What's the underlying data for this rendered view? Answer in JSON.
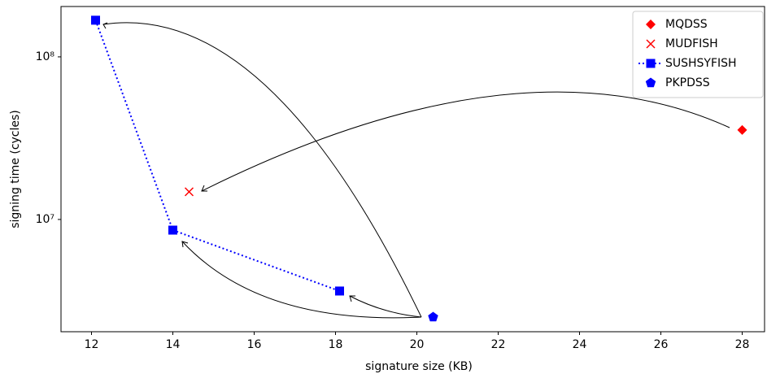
{
  "chart_data": {
    "type": "line",
    "x_label": "signature size (KB)",
    "y_label": "signing time (cycles)",
    "xlim": [
      11.25,
      28.55
    ],
    "xticks": [
      12,
      14,
      16,
      18,
      20,
      22,
      24,
      26,
      28
    ],
    "ylim": [
      2040000,
      204000000
    ],
    "yticks": [
      {
        "value": 10000000,
        "label": "10⁷"
      },
      {
        "value": 100000000,
        "label": "10⁸"
      }
    ],
    "y_scale": "log",
    "legend": "upper right",
    "series": [
      {
        "name": "MQDSS",
        "color": "#ff0000",
        "marker": "diamond",
        "line": false,
        "x": [
          28
        ],
        "values": [
          35500000
        ]
      },
      {
        "name": "MUDFISH",
        "color": "#ff0000",
        "marker": "x",
        "line": false,
        "x": [
          14.4
        ],
        "values": [
          14800000
        ]
      },
      {
        "name": "SUSHSYFISH",
        "color": "#0000ff",
        "marker": "square",
        "line": true,
        "x": [
          12.1,
          14,
          18.1
        ],
        "values": [
          168000000,
          8600000,
          3630000
        ]
      },
      {
        "name": "PKPDSS",
        "color": "#0000ff",
        "marker": "pentagon",
        "line": false,
        "x": [
          20.4
        ],
        "values": [
          2510000
        ]
      }
    ]
  }
}
